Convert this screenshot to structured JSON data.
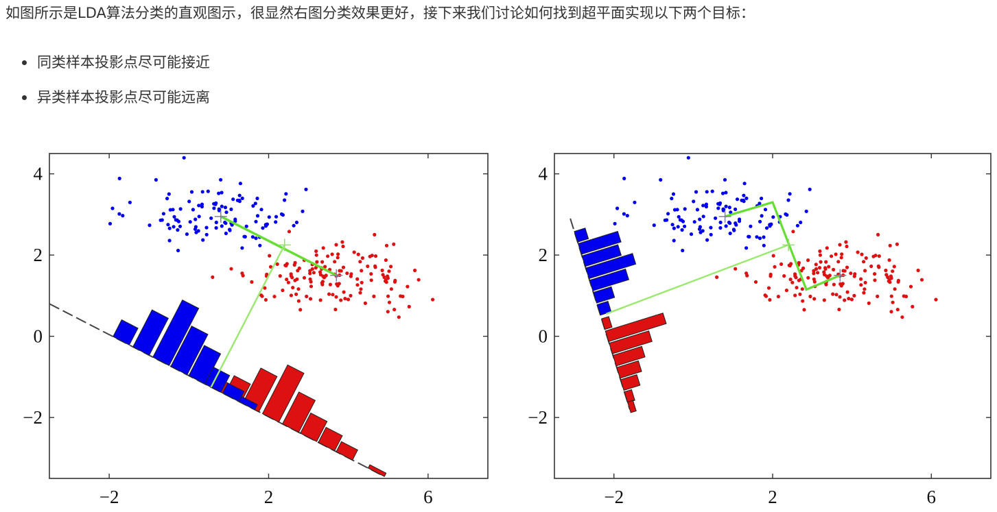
{
  "intro_text": "如图所示是LDA算法分类的直观图示，很显然右图分类效果更好，接下来我们讨论如何找到超平面实现以下两个目标：",
  "goals": [
    "同类样本投影点尽可能接近",
    "异类样本投影点尽可能远离"
  ],
  "colors": {
    "class_blue": "#0000ee",
    "class_red": "#dd1111",
    "mean_line": "#9ae86e",
    "mean_line_strong": "#66dd33",
    "axis": "#333333"
  },
  "chart_data": [
    {
      "type": "scatter",
      "panel": "left",
      "xlim": [
        -3.5,
        7.5
      ],
      "ylim": [
        -3.5,
        4.5
      ],
      "xticks": [
        -2,
        2,
        6
      ],
      "yticks": [
        -2,
        0,
        2,
        4
      ],
      "xtick_labels": [
        "−2",
        "2",
        "6"
      ],
      "ytick_labels": [
        "−2",
        "0",
        "2",
        "4"
      ],
      "grid": false,
      "series_colors": [
        "#0000ee",
        "#dd1111"
      ],
      "class_means": [
        [
          0.8,
          2.95
        ],
        [
          3.7,
          1.5
        ]
      ],
      "mean_midpoint": [
        2.4,
        2.25
      ],
      "projection_direction": [
        1,
        -0.58
      ],
      "projection_line": [
        [
          -3.5,
          0.8
        ],
        [
          4.8,
          -3.4
        ]
      ],
      "histogram_blue": [
        {
          "center": -1.7,
          "count": 0.5
        },
        {
          "center": -1.2,
          "count": 1.1
        },
        {
          "center": -0.7,
          "count": 1.7
        },
        {
          "center": -0.25,
          "count": 1.2
        },
        {
          "center": 0.2,
          "count": 0.9
        },
        {
          "center": 0.6,
          "count": 0.5
        },
        {
          "center": 1.05,
          "count": 0.3
        },
        {
          "center": 1.45,
          "count": 0.15
        }
      ],
      "histogram_red": [
        {
          "center": 0.65,
          "count": 0.3
        },
        {
          "center": 1.1,
          "count": 0.55
        },
        {
          "center": 1.55,
          "count": 1.05
        },
        {
          "center": 2.05,
          "count": 1.45
        },
        {
          "center": 2.55,
          "count": 0.95
        },
        {
          "center": 3.0,
          "count": 0.6
        },
        {
          "center": 3.45,
          "count": 0.45
        },
        {
          "center": 3.9,
          "count": 0.3
        },
        {
          "center": 4.7,
          "count": 0.1
        }
      ]
    },
    {
      "type": "scatter",
      "panel": "right",
      "xlim": [
        -3.5,
        7.5
      ],
      "ylim": [
        -3.5,
        4.5
      ],
      "xticks": [
        -2,
        2,
        6
      ],
      "yticks": [
        -2,
        0,
        2,
        4
      ],
      "xtick_labels": [
        "−2",
        "2",
        "6"
      ],
      "ytick_labels": [
        "−2",
        "0",
        "2",
        "4"
      ],
      "grid": false,
      "series_colors": [
        "#0000ee",
        "#dd1111"
      ],
      "class_means": [
        [
          0.8,
          2.95
        ],
        [
          3.7,
          1.5
        ]
      ],
      "mean_midpoint": [
        2.4,
        2.25
      ],
      "fisher_direction": [
        0.25,
        -1
      ],
      "projection_line": [
        [
          -3.1,
          2.9
        ],
        [
          -1.6,
          -1.8
        ]
      ],
      "histogram_blue": [
        {
          "center": 2.45,
          "count": 0.3
        },
        {
          "center": 2.15,
          "count": 1.1
        },
        {
          "center": 1.85,
          "count": 1.0
        },
        {
          "center": 1.55,
          "count": 1.3
        },
        {
          "center": 1.25,
          "count": 1.0
        },
        {
          "center": 0.95,
          "count": 0.5
        },
        {
          "center": 0.65,
          "count": 0.3
        }
      ],
      "histogram_red": [
        {
          "center": 0.3,
          "count": 0.2
        },
        {
          "center": 0.0,
          "count": 1.6
        },
        {
          "center": -0.3,
          "count": 1.1
        },
        {
          "center": -0.6,
          "count": 0.8
        },
        {
          "center": -0.9,
          "count": 0.6
        },
        {
          "center": -1.2,
          "count": 0.45
        },
        {
          "center": -1.5,
          "count": 0.2
        },
        {
          "center": -1.75,
          "count": 0.15
        }
      ]
    }
  ]
}
